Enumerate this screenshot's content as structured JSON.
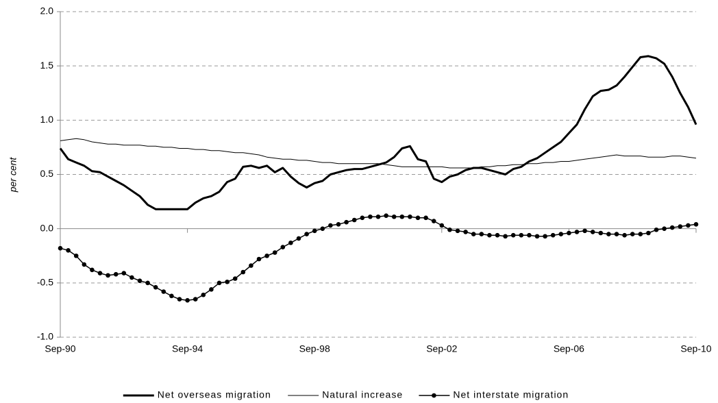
{
  "chart_data": {
    "type": "line",
    "y_label": "per cent",
    "categories": [
      "Sep-90",
      null,
      null,
      null,
      null,
      null,
      null,
      null,
      null,
      null,
      null,
      null,
      null,
      null,
      null,
      null,
      "Sep-94",
      null,
      null,
      null,
      null,
      null,
      null,
      null,
      null,
      null,
      null,
      null,
      null,
      null,
      null,
      null,
      "Sep-98",
      null,
      null,
      null,
      null,
      null,
      null,
      null,
      null,
      null,
      null,
      null,
      null,
      null,
      null,
      null,
      "Sep-02",
      null,
      null,
      null,
      null,
      null,
      null,
      null,
      null,
      null,
      null,
      null,
      null,
      null,
      null,
      null,
      "Sep-06",
      null,
      null,
      null,
      null,
      null,
      null,
      null,
      null,
      null,
      null,
      null,
      null,
      null,
      null,
      null,
      "Sep-10"
    ],
    "series": [
      {
        "name": "Net overseas migration",
        "color": "#000000",
        "line_width": 3,
        "marker": false,
        "values": [
          0.74,
          0.64,
          0.61,
          0.58,
          0.53,
          0.52,
          0.48,
          0.44,
          0.4,
          0.35,
          0.3,
          0.22,
          0.18,
          0.18,
          0.18,
          0.18,
          0.18,
          0.24,
          0.28,
          0.3,
          0.34,
          0.43,
          0.46,
          0.57,
          0.58,
          0.56,
          0.58,
          0.52,
          0.56,
          0.48,
          0.42,
          0.38,
          0.42,
          0.44,
          0.5,
          0.52,
          0.54,
          0.55,
          0.55,
          0.57,
          0.59,
          0.61,
          0.66,
          0.74,
          0.76,
          0.64,
          0.62,
          0.46,
          0.43,
          0.48,
          0.5,
          0.54,
          0.56,
          0.56,
          0.54,
          0.52,
          0.5,
          0.55,
          0.57,
          0.62,
          0.65,
          0.7,
          0.75,
          0.8,
          0.88,
          0.96,
          1.1,
          1.22,
          1.27,
          1.28,
          1.32,
          1.4,
          1.49,
          1.58,
          1.59,
          1.57,
          1.52,
          1.4,
          1.25,
          1.12,
          0.96
        ]
      },
      {
        "name": "Natural increase",
        "color": "#000000",
        "line_width": 1,
        "marker": false,
        "values": [
          0.81,
          0.82,
          0.83,
          0.82,
          0.8,
          0.79,
          0.78,
          0.78,
          0.77,
          0.77,
          0.77,
          0.76,
          0.76,
          0.75,
          0.75,
          0.74,
          0.74,
          0.73,
          0.73,
          0.72,
          0.72,
          0.71,
          0.7,
          0.7,
          0.69,
          0.68,
          0.66,
          0.65,
          0.64,
          0.64,
          0.63,
          0.63,
          0.62,
          0.61,
          0.61,
          0.6,
          0.6,
          0.6,
          0.6,
          0.6,
          0.6,
          0.59,
          0.58,
          0.57,
          0.57,
          0.57,
          0.57,
          0.57,
          0.57,
          0.56,
          0.56,
          0.56,
          0.56,
          0.57,
          0.57,
          0.58,
          0.58,
          0.59,
          0.59,
          0.6,
          0.6,
          0.61,
          0.61,
          0.62,
          0.62,
          0.63,
          0.64,
          0.65,
          0.66,
          0.67,
          0.68,
          0.67,
          0.67,
          0.67,
          0.66,
          0.66,
          0.66,
          0.67,
          0.67,
          0.66,
          0.65
        ]
      },
      {
        "name": "Net interstate migration",
        "color": "#000000",
        "line_width": 1.5,
        "marker": true,
        "values": [
          -0.18,
          -0.2,
          -0.25,
          -0.33,
          -0.38,
          -0.41,
          -0.43,
          -0.42,
          -0.41,
          -0.45,
          -0.48,
          -0.5,
          -0.54,
          -0.58,
          -0.62,
          -0.65,
          -0.66,
          -0.65,
          -0.61,
          -0.56,
          -0.5,
          -0.49,
          -0.46,
          -0.4,
          -0.34,
          -0.28,
          -0.25,
          -0.22,
          -0.17,
          -0.13,
          -0.09,
          -0.05,
          -0.02,
          0.0,
          0.03,
          0.04,
          0.06,
          0.08,
          0.1,
          0.11,
          0.11,
          0.12,
          0.11,
          0.11,
          0.11,
          0.1,
          0.1,
          0.07,
          0.03,
          -0.01,
          -0.02,
          -0.03,
          -0.05,
          -0.05,
          -0.06,
          -0.06,
          -0.07,
          -0.06,
          -0.06,
          -0.06,
          -0.07,
          -0.07,
          -0.06,
          -0.05,
          -0.04,
          -0.03,
          -0.02,
          -0.03,
          -0.04,
          -0.05,
          -0.05,
          -0.06,
          -0.05,
          -0.05,
          -0.04,
          -0.01,
          0.0,
          0.01,
          0.02,
          0.03,
          0.04
        ]
      }
    ],
    "ylim": [
      -1,
      2
    ],
    "yticks": [
      {
        "value": -1,
        "label": "-1.0"
      },
      -0.5,
      {
        "value": 0,
        "label": "0.0"
      },
      0.5,
      {
        "value": 1,
        "label": "1.0"
      },
      1.5,
      {
        "value": 2,
        "label": "2.0"
      }
    ],
    "grid": true,
    "legend": "bottom"
  }
}
